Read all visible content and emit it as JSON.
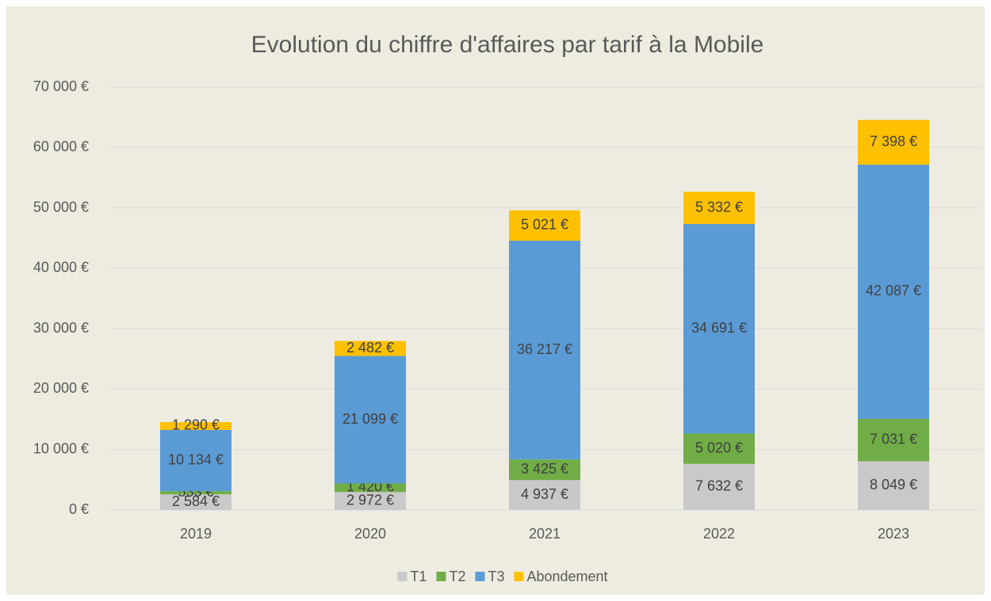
{
  "chart_data": {
    "type": "stacked_bar",
    "title": "Evolution du chiffre d'affaires par tarif à la Mobile",
    "categories": [
      "2019",
      "2020",
      "2021",
      "2022",
      "2023"
    ],
    "series": [
      {
        "name": "T1",
        "color": "#c9c9c9",
        "values": [
          2584,
          2972,
          4937,
          7632,
          8049
        ],
        "value_labels": [
          "2 584 €",
          "2 972 €",
          "4 937 €",
          "7 632 €",
          "8 049 €"
        ]
      },
      {
        "name": "T2",
        "color": "#70ad47",
        "values": [
          533,
          1420,
          3425,
          5020,
          7031
        ],
        "value_labels": [
          "533 €",
          "1 420 €",
          "3 425 €",
          "5 020 €",
          "7 031 €"
        ]
      },
      {
        "name": "T3",
        "color": "#5b9bd5",
        "values": [
          10134,
          21099,
          36217,
          34691,
          42087
        ],
        "value_labels": [
          "10 134 €",
          "21 099 €",
          "36 217 €",
          "34 691 €",
          "42 087 €"
        ]
      },
      {
        "name": "Abondement",
        "color": "#ffc000",
        "values": [
          1290,
          2482,
          5021,
          5332,
          7398
        ],
        "value_labels": [
          "1 290 €",
          "2 482 €",
          "5 021 €",
          "5 332 €",
          "7 398 €"
        ]
      }
    ],
    "ylim": [
      0,
      70000
    ],
    "yticks": [
      {
        "value": 0,
        "label": "0 €"
      },
      {
        "value": 10000,
        "label": "10 000 €"
      },
      {
        "value": 20000,
        "label": "20 000 €"
      },
      {
        "value": 30000,
        "label": "30 000 €"
      },
      {
        "value": 40000,
        "label": "40 000 €"
      },
      {
        "value": 50000,
        "label": "50 000 €"
      },
      {
        "value": 60000,
        "label": "60 000 €"
      },
      {
        "value": 70000,
        "label": "70 000 €"
      }
    ],
    "grid": true,
    "legend": "bottom"
  }
}
